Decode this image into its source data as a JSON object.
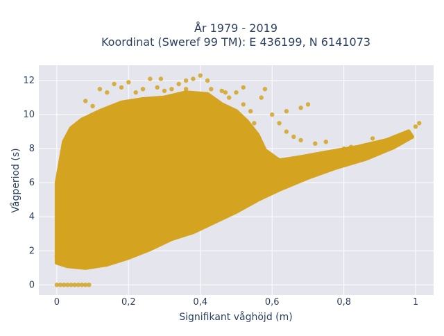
{
  "chart_data": {
    "type": "scatter",
    "title": [
      "År 1979 - 2019",
      "Koordinat (Sweref 99 TM): E 436199, N 6141073"
    ],
    "xlabel": "Signifikant våghöjd (m)",
    "ylabel": "Vågperiod (s)",
    "xlim": [
      -0.05,
      1.05
    ],
    "ylim": [
      -0.6,
      12.9
    ],
    "xticks": [
      0,
      0.2,
      0.4,
      0.6,
      0.8,
      1
    ],
    "xtick_labels": [
      "0",
      "0,2",
      "0,4",
      "0,6",
      "0,8",
      "1"
    ],
    "yticks": [
      0,
      2,
      4,
      6,
      8,
      10,
      12
    ],
    "ytick_labels": [
      "0",
      "2",
      "4",
      "6",
      "8",
      "10",
      "12"
    ],
    "grid": true,
    "legend": "none",
    "series": [
      {
        "color": "#D4A420",
        "points": [
          [
            0.0,
            0.0
          ],
          [
            0.01,
            0.0
          ],
          [
            0.02,
            0.0
          ],
          [
            0.03,
            0.0
          ],
          [
            0.04,
            0.0
          ],
          [
            0.05,
            0.0
          ],
          [
            0.06,
            0.0
          ],
          [
            0.07,
            0.0
          ],
          [
            0.08,
            0.0
          ],
          [
            0.09,
            0.0
          ],
          [
            0.0,
            1.7
          ],
          [
            0.01,
            2.5
          ],
          [
            0.01,
            4.0
          ],
          [
            0.01,
            5.7
          ],
          [
            0.02,
            6.5
          ],
          [
            0.02,
            8.2
          ],
          [
            0.03,
            7.5
          ],
          [
            0.03,
            6.8
          ],
          [
            0.02,
            4.8
          ],
          [
            0.02,
            3.5
          ],
          [
            0.04,
            9.1
          ],
          [
            0.05,
            8.6
          ],
          [
            0.04,
            1.4
          ],
          [
            0.06,
            1.2
          ],
          [
            0.08,
            1.1
          ],
          [
            0.1,
            1.2
          ],
          [
            0.12,
            1.3
          ],
          [
            0.15,
            1.5
          ],
          [
            0.18,
            1.7
          ],
          [
            0.22,
            2.0
          ],
          [
            0.26,
            2.4
          ],
          [
            0.3,
            2.8
          ],
          [
            0.34,
            3.1
          ],
          [
            0.38,
            3.4
          ],
          [
            0.42,
            3.9
          ],
          [
            0.46,
            4.3
          ],
          [
            0.5,
            4.6
          ],
          [
            0.54,
            5.0
          ],
          [
            0.58,
            5.4
          ],
          [
            0.62,
            5.8
          ],
          [
            0.66,
            6.1
          ],
          [
            0.7,
            6.5
          ],
          [
            0.74,
            6.8
          ],
          [
            0.78,
            7.1
          ],
          [
            0.82,
            7.3
          ],
          [
            0.86,
            7.6
          ],
          [
            0.9,
            7.9
          ],
          [
            0.94,
            8.3
          ],
          [
            0.98,
            8.8
          ],
          [
            1.01,
            9.5
          ],
          [
            1.0,
            9.3
          ],
          [
            0.98,
            9.0
          ],
          [
            0.96,
            8.7
          ],
          [
            0.94,
            8.6
          ],
          [
            0.92,
            8.5
          ],
          [
            0.9,
            8.3
          ],
          [
            0.88,
            8.6
          ],
          [
            0.86,
            8.2
          ],
          [
            0.84,
            8.0
          ],
          [
            0.82,
            8.1
          ],
          [
            0.8,
            8.0
          ],
          [
            0.78,
            7.8
          ],
          [
            0.76,
            7.6
          ],
          [
            0.74,
            7.7
          ],
          [
            0.72,
            7.4
          ],
          [
            0.7,
            7.3
          ],
          [
            0.68,
            7.2
          ],
          [
            0.66,
            7.0
          ],
          [
            0.64,
            7.0
          ],
          [
            0.62,
            6.8
          ],
          [
            0.6,
            6.5
          ],
          [
            0.58,
            7.8
          ],
          [
            0.56,
            8.0
          ],
          [
            0.55,
            9.5
          ],
          [
            0.54,
            10.2
          ],
          [
            0.52,
            10.6
          ],
          [
            0.5,
            11.3
          ],
          [
            0.48,
            11.0
          ],
          [
            0.46,
            11.4
          ],
          [
            0.44,
            10.8
          ],
          [
            0.42,
            12.0
          ],
          [
            0.4,
            12.3
          ],
          [
            0.38,
            12.1
          ],
          [
            0.36,
            11.5
          ],
          [
            0.34,
            11.8
          ],
          [
            0.32,
            11.5
          ],
          [
            0.3,
            11.4
          ],
          [
            0.28,
            11.6
          ],
          [
            0.26,
            12.1
          ],
          [
            0.24,
            11.5
          ],
          [
            0.22,
            11.3
          ],
          [
            0.2,
            11.9
          ],
          [
            0.18,
            11.6
          ],
          [
            0.16,
            11.8
          ],
          [
            0.14,
            11.3
          ],
          [
            0.12,
            11.5
          ],
          [
            0.1,
            10.5
          ],
          [
            0.08,
            10.8
          ],
          [
            0.06,
            9.2
          ],
          [
            0.05,
            8.8
          ],
          [
            0.7,
            10.6
          ],
          [
            0.68,
            10.4
          ],
          [
            0.64,
            10.2
          ],
          [
            0.6,
            10.0
          ],
          [
            0.62,
            9.5
          ],
          [
            0.64,
            9.0
          ],
          [
            0.66,
            8.7
          ],
          [
            0.68,
            8.5
          ],
          [
            0.72,
            8.3
          ],
          [
            0.75,
            8.4
          ],
          [
            0.58,
            11.5
          ],
          [
            0.57,
            11.0
          ],
          [
            0.52,
            11.6
          ],
          [
            0.47,
            11.3
          ],
          [
            0.43,
            11.5
          ],
          [
            0.36,
            12.0
          ],
          [
            0.29,
            12.1
          ]
        ]
      }
    ]
  }
}
